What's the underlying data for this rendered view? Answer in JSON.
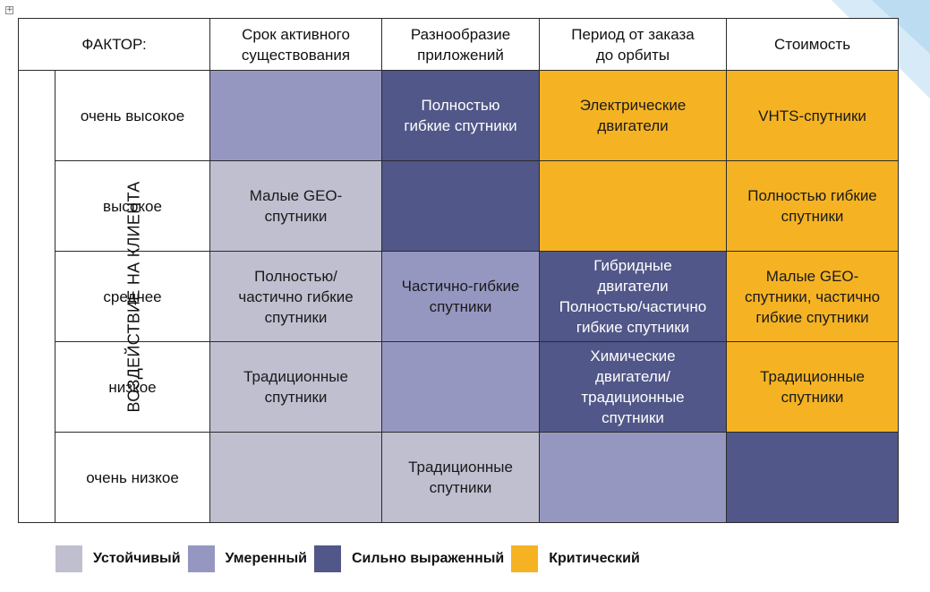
{
  "header": {
    "factor": "ФАКТОР:",
    "columns": [
      [
        "Срок активного",
        "существования"
      ],
      [
        "Разнообразие",
        "приложений"
      ],
      [
        "Период от заказа",
        "до орбиты"
      ],
      [
        "Стоимость"
      ]
    ]
  },
  "axis_label": "ВОЗДЕЙСТВИЕ НА КЛИЕНТА",
  "rows": [
    {
      "label": "очень высокое",
      "cells": [
        {
          "level": "moderate",
          "lines": []
        },
        {
          "level": "strong",
          "lines": [
            "Полностью",
            "гибкие спутники"
          ]
        },
        {
          "level": "critical",
          "lines": [
            "Электрические",
            "двигатели"
          ]
        },
        {
          "level": "critical",
          "lines": [
            "VHTS-спутники"
          ]
        }
      ]
    },
    {
      "label": "высокое",
      "cells": [
        {
          "level": "stable",
          "lines": [
            "Малые GEO-",
            "спутники"
          ]
        },
        {
          "level": "strong",
          "lines": []
        },
        {
          "level": "critical",
          "lines": []
        },
        {
          "level": "critical",
          "lines": [
            "Полностью гибкие",
            "спутники"
          ]
        }
      ]
    },
    {
      "label": "среднее",
      "cells": [
        {
          "level": "stable",
          "lines": [
            "Полностью/",
            "частично гибкие",
            "спутники"
          ]
        },
        {
          "level": "moderate",
          "lines": [
            "Частично-гибкие",
            "спутники"
          ]
        },
        {
          "level": "strong",
          "lines": [
            "Гибридные",
            "двигатели",
            "Полностью/частично",
            "гибкие спутники"
          ]
        },
        {
          "level": "critical",
          "lines": [
            "Малые GEO-",
            "спутники, частично",
            "гибкие спутники"
          ]
        }
      ]
    },
    {
      "label": "низкое",
      "cells": [
        {
          "level": "stable",
          "lines": [
            "Традиционные",
            "спутники"
          ]
        },
        {
          "level": "moderate",
          "lines": []
        },
        {
          "level": "strong",
          "lines": [
            "Химические",
            "двигатели/",
            "традиционные",
            "спутники"
          ]
        },
        {
          "level": "critical",
          "lines": [
            "Традиционные",
            "спутники"
          ]
        }
      ]
    },
    {
      "label": "очень низкое",
      "cells": [
        {
          "level": "stable",
          "lines": []
        },
        {
          "level": "stable",
          "lines": [
            "Традиционные",
            "спутники"
          ]
        },
        {
          "level": "moderate",
          "lines": []
        },
        {
          "level": "strong",
          "lines": []
        }
      ]
    }
  ],
  "legend": [
    {
      "level": "stable",
      "label": "Устойчивый"
    },
    {
      "level": "moderate",
      "label": "Умеренный"
    },
    {
      "level": "strong",
      "label": "Сильно выраженный"
    },
    {
      "level": "critical",
      "label": "Критический"
    }
  ],
  "colors": {
    "stable": "#bfbfd0",
    "moderate": "#9697c1",
    "strong": "#515788",
    "critical": "#f5b324",
    "decor_blue": "#cfe6f7"
  },
  "icons": {
    "anchor": "move-anchor-icon",
    "corner": "decorative-corner-shape"
  }
}
